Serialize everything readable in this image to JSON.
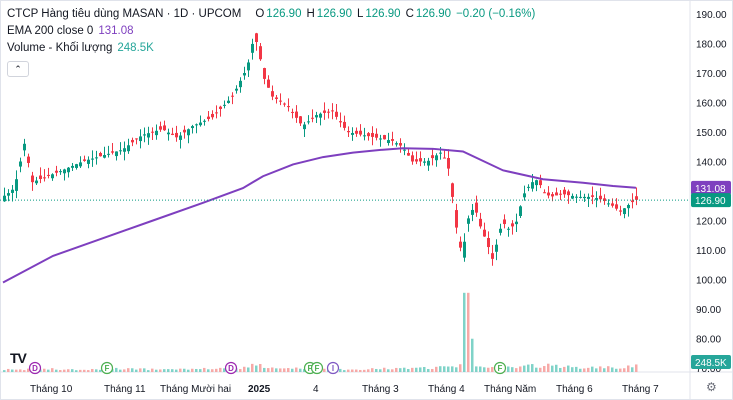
{
  "legend": {
    "title": "CTCP Hàng tiêu dùng MASAN · 1D · UPCOM",
    "open_label": "O",
    "open": "126.90",
    "high_label": "H",
    "high": "126.90",
    "low_label": "L",
    "low": "126.90",
    "close_label": "C",
    "close": "126.90",
    "change": "−0.20 (−0.16%)",
    "ema_label": "EMA 200 close 0",
    "ema_value": "131.08",
    "volume_label": "Volume - Khối lượng",
    "volume_value": "248.5K"
  },
  "icons": {
    "collapse": "chevron-up-icon",
    "settings": "gear-icon",
    "logo": "tradingview-logo"
  },
  "colors": {
    "up": "#089981",
    "down": "#f23645",
    "ema": "#7e3fbf",
    "volume_up": "#7fd3c8",
    "volume_down": "#f7a9a7"
  },
  "chart_data": {
    "type": "candlestick",
    "y_axis": {
      "ticks": [
        190,
        180,
        170,
        160,
        150,
        140,
        130,
        120,
        110,
        100,
        90,
        80,
        70
      ],
      "labels": [
        "190.00",
        "180.00",
        "170.00",
        "160.00",
        "150.00",
        "140.00",
        "130.00",
        "120.00",
        "110.00",
        "100.00",
        "90.00",
        "80.00",
        "70.00"
      ]
    },
    "x_axis": {
      "labels": [
        "Tháng 10",
        "Tháng 11",
        "Tháng Mười hai",
        "2025",
        "4",
        "Tháng 3",
        "Tháng 4",
        "Tháng Năm",
        "Tháng 6",
        "Tháng 7"
      ]
    },
    "price_tags": {
      "ema": "131.08",
      "close": "126.90",
      "volume": "248.5K"
    },
    "events": [
      "D",
      "F",
      "D",
      "F",
      "F",
      "I",
      "F"
    ],
    "price_path": [
      [
        0,
        128
      ],
      [
        5,
        129
      ],
      [
        12,
        131
      ],
      [
        22,
        146
      ],
      [
        30,
        133
      ],
      [
        45,
        135
      ],
      [
        60,
        137
      ],
      [
        80,
        140
      ],
      [
        100,
        142
      ],
      [
        120,
        144
      ],
      [
        140,
        149
      ],
      [
        160,
        151
      ],
      [
        175,
        148
      ],
      [
        190,
        152
      ],
      [
        210,
        155
      ],
      [
        230,
        162
      ],
      [
        245,
        172
      ],
      [
        252,
        183
      ],
      [
        256,
        178
      ],
      [
        262,
        168
      ],
      [
        270,
        162
      ],
      [
        285,
        159
      ],
      [
        300,
        152
      ],
      [
        315,
        156
      ],
      [
        330,
        157
      ],
      [
        345,
        150
      ],
      [
        360,
        149
      ],
      [
        375,
        148
      ],
      [
        390,
        147
      ],
      [
        400,
        145
      ],
      [
        410,
        140
      ],
      [
        425,
        140
      ],
      [
        438,
        143
      ],
      [
        445,
        140
      ],
      [
        450,
        128
      ],
      [
        455,
        115
      ],
      [
        460,
        108
      ],
      [
        465,
        120
      ],
      [
        472,
        125
      ],
      [
        478,
        118
      ],
      [
        485,
        112
      ],
      [
        490,
        107
      ],
      [
        495,
        113
      ],
      [
        500,
        120
      ],
      [
        505,
        117
      ],
      [
        510,
        118
      ],
      [
        515,
        120
      ],
      [
        520,
        128
      ],
      [
        525,
        131
      ],
      [
        530,
        133
      ],
      [
        536,
        134
      ],
      [
        540,
        130
      ],
      [
        548,
        128
      ],
      [
        560,
        129
      ],
      [
        575,
        128
      ],
      [
        590,
        128
      ],
      [
        600,
        127
      ],
      [
        610,
        125
      ],
      [
        618,
        123
      ],
      [
        625,
        125
      ],
      [
        633,
        127
      ]
    ],
    "ema_path": [
      [
        0,
        99
      ],
      [
        50,
        108
      ],
      [
        100,
        114
      ],
      [
        150,
        120
      ],
      [
        200,
        126
      ],
      [
        240,
        131
      ],
      [
        260,
        135
      ],
      [
        290,
        139
      ],
      [
        320,
        141.5
      ],
      [
        350,
        143
      ],
      [
        380,
        144
      ],
      [
        400,
        144.5
      ],
      [
        430,
        144.3
      ],
      [
        460,
        143.4
      ],
      [
        500,
        137
      ],
      [
        540,
        134
      ],
      [
        580,
        132.8
      ],
      [
        610,
        131.7
      ],
      [
        633,
        131.08
      ]
    ],
    "volume_path": [
      [
        0,
        3
      ],
      [
        40,
        4
      ],
      [
        80,
        3
      ],
      [
        120,
        4
      ],
      [
        160,
        3
      ],
      [
        200,
        4
      ],
      [
        240,
        5
      ],
      [
        252,
        9
      ],
      [
        260,
        6
      ],
      [
        300,
        4
      ],
      [
        340,
        3
      ],
      [
        380,
        4
      ],
      [
        420,
        5
      ],
      [
        440,
        6
      ],
      [
        455,
        8
      ],
      [
        460,
        12
      ],
      [
        463,
        98
      ],
      [
        470,
        7
      ],
      [
        500,
        6
      ],
      [
        540,
        8
      ],
      [
        580,
        5
      ],
      [
        620,
        6
      ],
      [
        633,
        8
      ]
    ]
  }
}
